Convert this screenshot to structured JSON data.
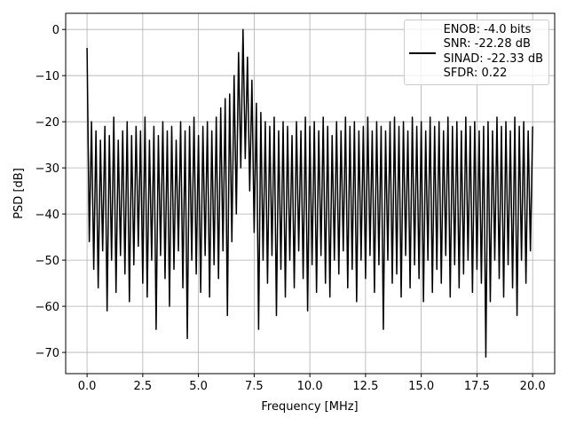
{
  "chart_data": {
    "type": "line",
    "xlabel": "Frequency [MHz]",
    "ylabel": "PSD [dB]",
    "x": [
      0,
      0.1,
      0.2,
      0.3,
      0.4,
      0.5,
      0.6,
      0.7,
      0.8,
      0.9,
      1,
      1.1,
      1.2,
      1.3,
      1.4,
      1.5,
      1.6,
      1.7,
      1.8,
      1.9,
      2,
      2.1,
      2.2,
      2.3,
      2.4,
      2.5,
      2.6,
      2.7,
      2.8,
      2.9,
      3,
      3.1,
      3.2,
      3.3,
      3.4,
      3.5,
      3.6,
      3.7,
      3.8,
      3.9,
      4,
      4.1,
      4.2,
      4.3,
      4.4,
      4.5,
      4.6,
      4.7,
      4.8,
      4.9,
      5,
      5.1,
      5.2,
      5.3,
      5.4,
      5.5,
      5.6,
      5.7,
      5.8,
      5.9,
      6,
      6.1,
      6.2,
      6.3,
      6.4,
      6.5,
      6.6,
      6.7,
      6.8,
      6.9,
      7,
      7.1,
      7.2,
      7.3,
      7.4,
      7.5,
      7.6,
      7.7,
      7.8,
      7.9,
      8,
      8.1,
      8.2,
      8.3,
      8.4,
      8.5,
      8.6,
      8.7,
      8.8,
      8.9,
      9,
      9.1,
      9.2,
      9.3,
      9.4,
      9.5,
      9.6,
      9.7,
      9.8,
      9.9,
      10,
      10.1,
      10.2,
      10.3,
      10.4,
      10.5,
      10.6,
      10.7,
      10.8,
      10.9,
      11,
      11.1,
      11.2,
      11.3,
      11.4,
      11.5,
      11.6,
      11.7,
      11.8,
      11.9,
      12,
      12.1,
      12.2,
      12.3,
      12.4,
      12.5,
      12.6,
      12.7,
      12.8,
      12.9,
      13,
      13.1,
      13.2,
      13.3,
      13.4,
      13.5,
      13.6,
      13.7,
      13.8,
      13.9,
      14,
      14.1,
      14.2,
      14.3,
      14.4,
      14.5,
      14.6,
      14.7,
      14.8,
      14.9,
      15,
      15.1,
      15.2,
      15.3,
      15.4,
      15.5,
      15.6,
      15.7,
      15.8,
      15.9,
      16,
      16.1,
      16.2,
      16.3,
      16.4,
      16.5,
      16.6,
      16.7,
      16.8,
      16.9,
      17,
      17.1,
      17.2,
      17.3,
      17.4,
      17.5,
      17.6,
      17.7,
      17.8,
      17.9,
      18,
      18.1,
      18.2,
      18.3,
      18.4,
      18.5,
      18.6,
      18.7,
      18.8,
      18.9,
      19,
      19.1,
      19.2,
      19.3,
      19.4,
      19.5,
      19.6,
      19.7,
      19.8,
      19.9,
      20
    ],
    "series": [
      {
        "name": "ENOB: -4.0 bits\nSNR: -22.28 dB\nSINAD: -22.33 dB\nSFDR: 0.22",
        "color": "#000000",
        "values": [
          -4,
          -46,
          -20,
          -52,
          -22,
          -56,
          -24,
          -48,
          -21,
          -61,
          -23,
          -50,
          -19,
          -57,
          -24,
          -49,
          -22,
          -53,
          -20,
          -59,
          -23,
          -51,
          -21,
          -47,
          -22,
          -55,
          -19,
          -58,
          -24,
          -50,
          -21,
          -65,
          -23,
          -49,
          -20,
          -54,
          -22,
          -60,
          -21,
          -52,
          -24,
          -48,
          -20,
          -56,
          -22,
          -67,
          -21,
          -50,
          -19,
          -53,
          -23,
          -57,
          -21,
          -49,
          -20,
          -58,
          -22,
          -51,
          -19,
          -54,
          -17,
          -48,
          -15,
          -62,
          -14,
          -46,
          -10,
          -40,
          -5,
          -30,
          0,
          -28,
          -6,
          -35,
          -11,
          -44,
          -16,
          -65,
          -18,
          -50,
          -20,
          -55,
          -21,
          -49,
          -19,
          -62,
          -22,
          -52,
          -20,
          -58,
          -21,
          -50,
          -23,
          -56,
          -20,
          -48,
          -22,
          -54,
          -19,
          -61,
          -21,
          -51,
          -20,
          -57,
          -22,
          -49,
          -19,
          -55,
          -21,
          -58,
          -23,
          -50,
          -20,
          -53,
          -22,
          -48,
          -19,
          -56,
          -21,
          -52,
          -20,
          -59,
          -22,
          -50,
          -21,
          -54,
          -19,
          -49,
          -22,
          -57,
          -20,
          -51,
          -21,
          -65,
          -22,
          -50,
          -20,
          -55,
          -19,
          -53,
          -21,
          -58,
          -20,
          -49,
          -22,
          -56,
          -19,
          -51,
          -21,
          -54,
          -20,
          -59,
          -22,
          -50,
          -19,
          -57,
          -21,
          -52,
          -20,
          -55,
          -22,
          -49,
          -19,
          -58,
          -21,
          -51,
          -20,
          -56,
          -22,
          -53,
          -19,
          -50,
          -21,
          -57,
          -20,
          -52,
          -22,
          -55,
          -21,
          -71,
          -20,
          -59,
          -22,
          -50,
          -19,
          -54,
          -21,
          -58,
          -20,
          -51,
          -22,
          -56,
          -19,
          -62,
          -21,
          -50,
          -20,
          -55,
          -22,
          -48,
          -21
        ]
      }
    ],
    "xlim": [
      -0.96,
      20.99
    ],
    "ylim": [
      -74.6,
      3.5
    ],
    "xticks": [
      {
        "value": 0,
        "label": "0.0"
      },
      2.5,
      {
        "value": 5,
        "label": "5.0"
      },
      7.5,
      {
        "value": 10,
        "label": "10.0"
      },
      12.5,
      {
        "value": 15,
        "label": "15.0"
      },
      17.5,
      {
        "value": 20,
        "label": "20.0"
      }
    ],
    "yticks": [
      {
        "value": -70,
        "label": "−70"
      },
      {
        "value": -60,
        "label": "−60"
      },
      {
        "value": -50,
        "label": "−50"
      },
      {
        "value": -40,
        "label": "−40"
      },
      {
        "value": -30,
        "label": "−30"
      },
      {
        "value": -20,
        "label": "−20"
      },
      {
        "value": -10,
        "label": "−10"
      },
      0
    ],
    "grid": true,
    "legend": "upper right"
  }
}
